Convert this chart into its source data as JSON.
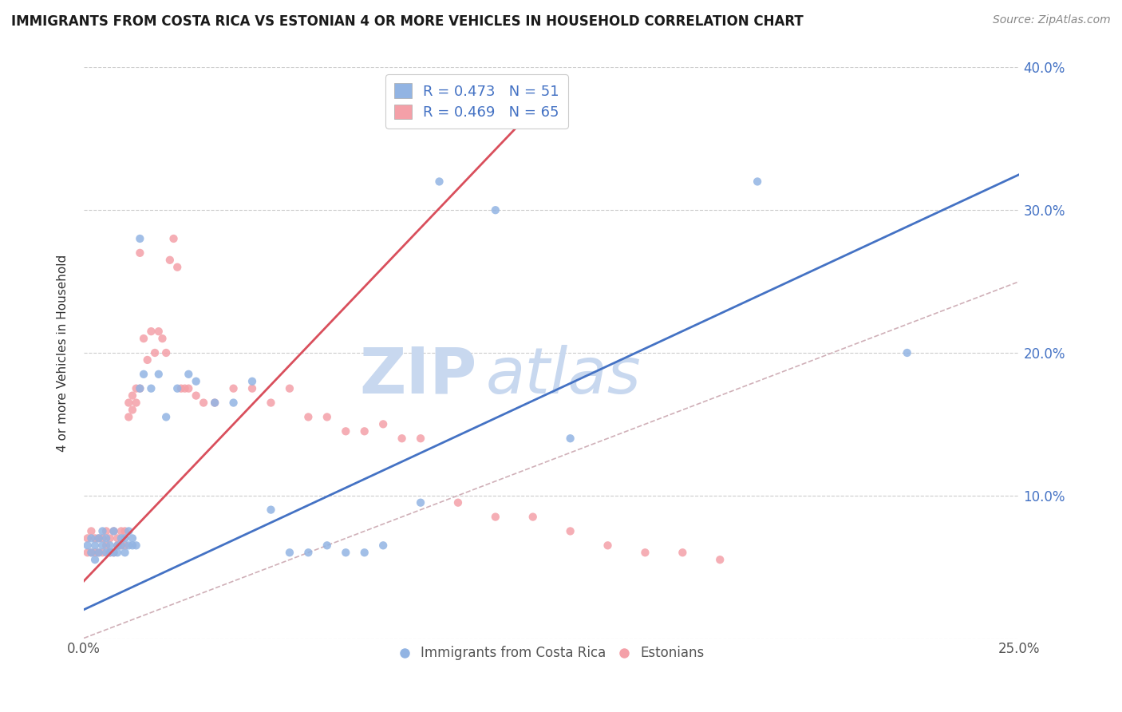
{
  "title": "IMMIGRANTS FROM COSTA RICA VS ESTONIAN 4 OR MORE VEHICLES IN HOUSEHOLD CORRELATION CHART",
  "source_text": "Source: ZipAtlas.com",
  "ylabel": "4 or more Vehicles in Household",
  "xlim": [
    0.0,
    0.25
  ],
  "ylim": [
    0.0,
    0.4
  ],
  "legend_text_blue": "R = 0.473   N = 51",
  "legend_text_pink": "R = 0.469   N = 65",
  "legend_label_blue": "Immigrants from Costa Rica",
  "legend_label_pink": "Estonians",
  "blue_scatter_color": "#92b4e3",
  "pink_scatter_color": "#f4a0a8",
  "blue_line_color": "#4472c4",
  "pink_line_color": "#d94f5c",
  "diagonal_color": "#d0b0b8",
  "watermark_zip": "ZIP",
  "watermark_atlas": "atlas",
  "watermark_color": "#c8d8ef",
  "blue_scatter_x": [
    0.001,
    0.002,
    0.002,
    0.003,
    0.003,
    0.004,
    0.004,
    0.005,
    0.005,
    0.006,
    0.006,
    0.007,
    0.007,
    0.008,
    0.008,
    0.009,
    0.009,
    0.01,
    0.01,
    0.011,
    0.011,
    0.012,
    0.012,
    0.013,
    0.013,
    0.014,
    0.015,
    0.015,
    0.016,
    0.018,
    0.02,
    0.022,
    0.025,
    0.028,
    0.03,
    0.035,
    0.04,
    0.045,
    0.05,
    0.055,
    0.06,
    0.065,
    0.07,
    0.075,
    0.08,
    0.09,
    0.095,
    0.11,
    0.13,
    0.18,
    0.22
  ],
  "blue_scatter_y": [
    0.065,
    0.06,
    0.07,
    0.055,
    0.065,
    0.06,
    0.07,
    0.065,
    0.075,
    0.06,
    0.07,
    0.06,
    0.065,
    0.06,
    0.075,
    0.06,
    0.065,
    0.065,
    0.07,
    0.06,
    0.07,
    0.065,
    0.075,
    0.065,
    0.07,
    0.065,
    0.175,
    0.28,
    0.185,
    0.175,
    0.185,
    0.155,
    0.175,
    0.185,
    0.18,
    0.165,
    0.165,
    0.18,
    0.09,
    0.06,
    0.06,
    0.065,
    0.06,
    0.06,
    0.065,
    0.095,
    0.32,
    0.3,
    0.14,
    0.32,
    0.2
  ],
  "pink_scatter_x": [
    0.001,
    0.001,
    0.002,
    0.002,
    0.003,
    0.003,
    0.004,
    0.004,
    0.005,
    0.005,
    0.006,
    0.006,
    0.007,
    0.007,
    0.008,
    0.008,
    0.009,
    0.009,
    0.01,
    0.01,
    0.011,
    0.011,
    0.012,
    0.012,
    0.013,
    0.013,
    0.014,
    0.014,
    0.015,
    0.015,
    0.016,
    0.017,
    0.018,
    0.019,
    0.02,
    0.021,
    0.022,
    0.023,
    0.024,
    0.025,
    0.026,
    0.027,
    0.028,
    0.03,
    0.032,
    0.035,
    0.04,
    0.045,
    0.05,
    0.055,
    0.06,
    0.065,
    0.07,
    0.075,
    0.08,
    0.085,
    0.09,
    0.1,
    0.11,
    0.12,
    0.13,
    0.14,
    0.15,
    0.16,
    0.17
  ],
  "pink_scatter_y": [
    0.06,
    0.07,
    0.06,
    0.075,
    0.06,
    0.07,
    0.06,
    0.07,
    0.06,
    0.07,
    0.065,
    0.075,
    0.06,
    0.07,
    0.06,
    0.075,
    0.065,
    0.07,
    0.065,
    0.075,
    0.065,
    0.075,
    0.165,
    0.155,
    0.16,
    0.17,
    0.175,
    0.165,
    0.175,
    0.27,
    0.21,
    0.195,
    0.215,
    0.2,
    0.215,
    0.21,
    0.2,
    0.265,
    0.28,
    0.26,
    0.175,
    0.175,
    0.175,
    0.17,
    0.165,
    0.165,
    0.175,
    0.175,
    0.165,
    0.175,
    0.155,
    0.155,
    0.145,
    0.145,
    0.15,
    0.14,
    0.14,
    0.095,
    0.085,
    0.085,
    0.075,
    0.065,
    0.06,
    0.06,
    0.055
  ],
  "blue_line_x": [
    0.0,
    0.25
  ],
  "blue_line_y": [
    0.02,
    0.325
  ],
  "pink_line_x": [
    0.0,
    0.12
  ],
  "pink_line_y": [
    0.04,
    0.37
  ]
}
